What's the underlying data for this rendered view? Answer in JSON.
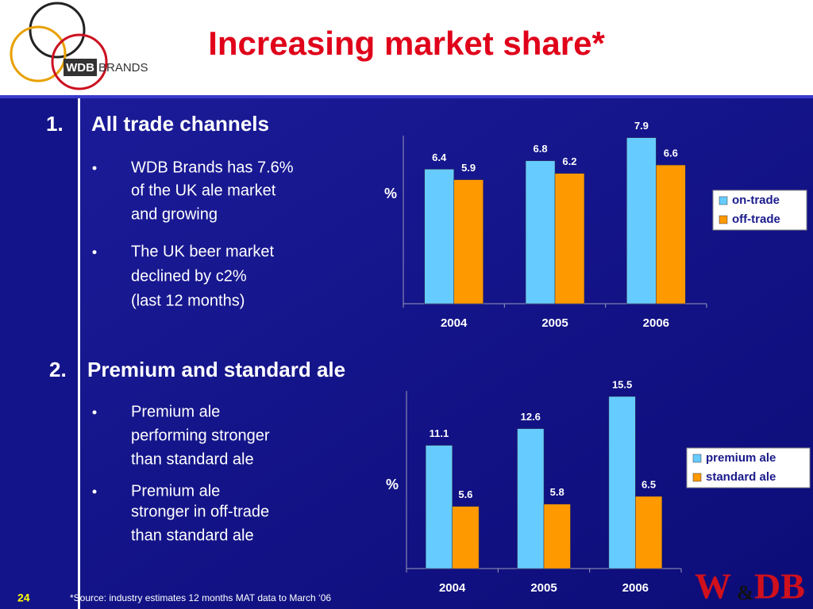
{
  "title": "Increasing market share*",
  "logo": {
    "mark": "WDB",
    "name": "BRANDS"
  },
  "corner_logo": {
    "left": "W",
    "amp": "&",
    "right": "DB"
  },
  "sections": [
    {
      "number": "1.",
      "heading": "All trade channels",
      "bullets": [
        [
          "WDB Brands has 7.6%",
          "of the UK ale market",
          "and growing"
        ],
        [
          "The UK beer market",
          "declined by c2%",
          "(last 12 months)"
        ]
      ]
    },
    {
      "number": "2.",
      "heading": "Premium and standard ale",
      "bullets": [
        [
          "Premium ale",
          "performing stronger",
          "than standard ale"
        ],
        [
          "Premium ale",
          "stronger in off-trade",
          "than standard ale"
        ]
      ]
    }
  ],
  "page_number": "24",
  "footnote": "*Source: industry estimates 12 months MAT data to March ‘06",
  "chart_data": [
    {
      "type": "bar",
      "y_label": "%",
      "categories": [
        "2004",
        "2005",
        "2006"
      ],
      "series": [
        {
          "name": "on-trade",
          "color": "#66ccff",
          "values": [
            6.4,
            6.8,
            7.9
          ]
        },
        {
          "name": "off-trade",
          "color": "#ff9900",
          "values": [
            5.9,
            6.2,
            6.6
          ]
        }
      ],
      "ylim": [
        0,
        8
      ]
    },
    {
      "type": "bar",
      "y_label": "%",
      "categories": [
        "2004",
        "2005",
        "2006"
      ],
      "series": [
        {
          "name": "premium ale",
          "color": "#66ccff",
          "values": [
            11.1,
            12.6,
            15.5
          ]
        },
        {
          "name": "standard ale",
          "color": "#ff9900",
          "values": [
            5.6,
            5.8,
            6.5
          ]
        }
      ],
      "ylim": [
        0,
        16
      ]
    }
  ]
}
